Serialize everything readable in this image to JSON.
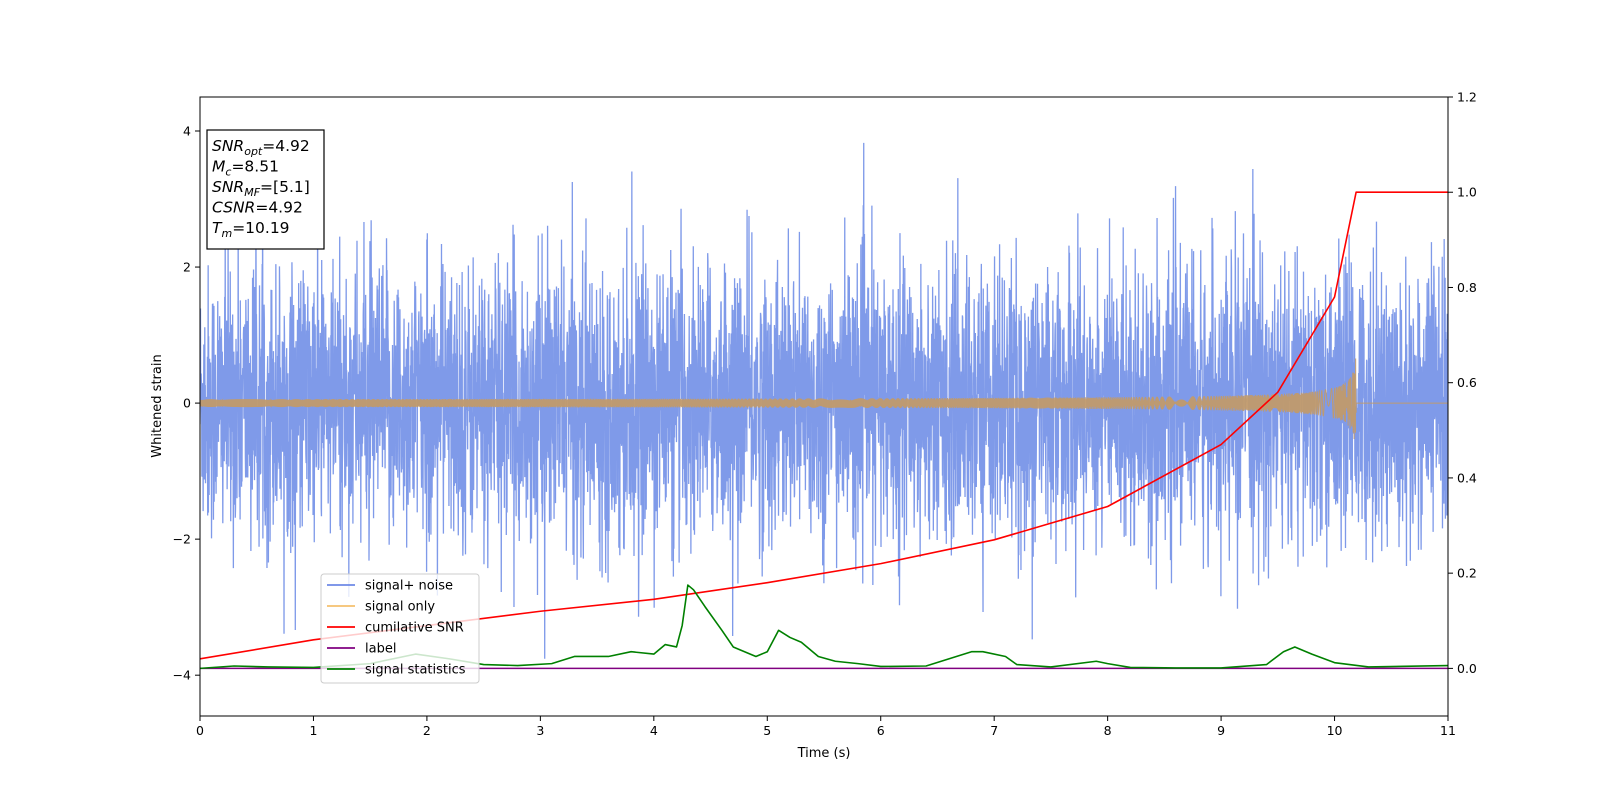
{
  "chart_data": {
    "type": "line",
    "xlabel": "Time (s)",
    "ylabel": "Whitened strain",
    "xlim": [
      0,
      11
    ],
    "ylim_left": [
      -4.6,
      4.5
    ],
    "ylim_right": [
      -0.1,
      1.2
    ],
    "x_ticks": [
      0,
      1,
      2,
      3,
      4,
      5,
      6,
      7,
      8,
      9,
      10,
      11
    ],
    "y_ticks_left": [
      -4,
      -2,
      0,
      2,
      4
    ],
    "y_ticks_right": [
      0.0,
      0.2,
      0.4,
      0.6,
      0.8,
      1.0,
      1.2
    ],
    "y_tick_labels_right": [
      "0.0",
      "0.2",
      "0.4",
      "0.6",
      "0.8",
      "1.0",
      "1.2"
    ],
    "grid": false,
    "legend_placement": "lower-left",
    "annotation": {
      "lines": [
        {
          "base": "SNR",
          "sub": "opt",
          "value": "=4.92"
        },
        {
          "base": "M",
          "sub": "c",
          "value": "=8.51"
        },
        {
          "base": "SNR",
          "sub": "MF",
          "value": "=[5.1]"
        },
        {
          "base": "CSNR",
          "sub": "",
          "value": "=4.92"
        },
        {
          "base": "T",
          "sub": "m",
          "value": "=10.19"
        }
      ]
    },
    "series": [
      {
        "name": "signal+ noise",
        "axis": "left",
        "color": "#7895e8",
        "noise_std": 1.0,
        "x_range": [
          0,
          11
        ]
      },
      {
        "name": "signal only",
        "axis": "left",
        "color": "#f5c16e",
        "merger_time": 10.19,
        "peak_amplitude": 0.75,
        "x_range": [
          0,
          10.19
        ]
      },
      {
        "name": "cumilative SNR",
        "axis": "right",
        "color": "#ff0000",
        "x": [
          0,
          1,
          2,
          3,
          4,
          5,
          6,
          7,
          8,
          9,
          9.5,
          10,
          10.19,
          11
        ],
        "values": [
          0.02,
          0.06,
          0.09,
          0.12,
          0.145,
          0.18,
          0.22,
          0.27,
          0.34,
          0.47,
          0.58,
          0.78,
          1.0,
          1.0
        ]
      },
      {
        "name": "label",
        "axis": "right",
        "color": "#800080",
        "x": [
          0,
          11
        ],
        "values": [
          0.0,
          0.0
        ]
      },
      {
        "name": "signal statistics",
        "axis": "right",
        "color": "#008000",
        "x": [
          0,
          0.3,
          0.6,
          1.0,
          1.5,
          1.9,
          2.2,
          2.5,
          2.8,
          3.1,
          3.3,
          3.6,
          3.8,
          4.0,
          4.1,
          4.2,
          4.25,
          4.3,
          4.35,
          4.45,
          4.6,
          4.7,
          4.8,
          4.9,
          5.0,
          5.1,
          5.2,
          5.3,
          5.45,
          5.6,
          5.8,
          6.0,
          6.4,
          6.8,
          6.9,
          7.1,
          7.2,
          7.5,
          7.9,
          8.0,
          8.2,
          8.6,
          9.0,
          9.4,
          9.55,
          9.65,
          9.8,
          10.0,
          10.3,
          11.0
        ],
        "values": [
          0.0,
          0.005,
          0.003,
          0.002,
          0.01,
          0.03,
          0.02,
          0.008,
          0.006,
          0.01,
          0.025,
          0.025,
          0.035,
          0.03,
          0.05,
          0.045,
          0.09,
          0.175,
          0.165,
          0.13,
          0.08,
          0.045,
          0.035,
          0.025,
          0.035,
          0.08,
          0.065,
          0.055,
          0.025,
          0.015,
          0.01,
          0.004,
          0.005,
          0.035,
          0.035,
          0.025,
          0.008,
          0.003,
          0.015,
          0.01,
          0.002,
          0.001,
          0.001,
          0.008,
          0.035,
          0.045,
          0.03,
          0.012,
          0.003,
          0.006
        ]
      }
    ]
  }
}
